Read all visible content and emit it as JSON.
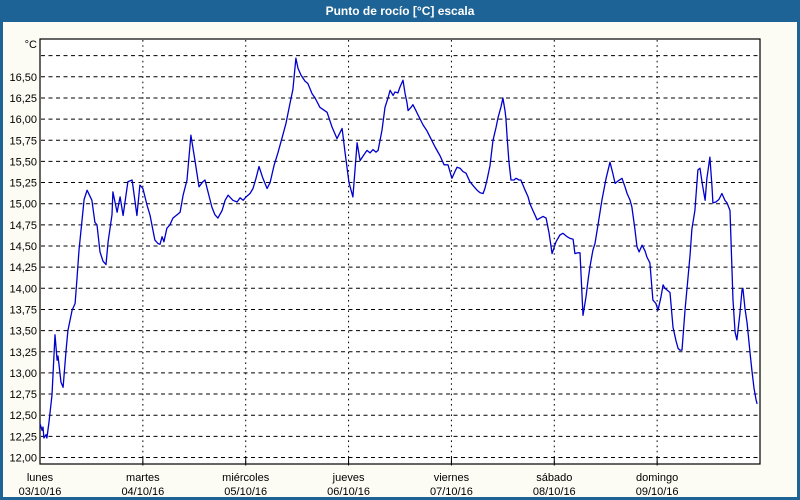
{
  "title": "Punto de rocío [°C] escala",
  "colors": {
    "frame": "#1D6396",
    "titlebar_bg": "#1D6396",
    "title_text": "#FFFFFF",
    "background": "#FCFCF4",
    "plot_background": "#FFFFFF",
    "grid": "#000000",
    "axis_text": "#000000",
    "line": "#0000CD"
  },
  "chart_data": {
    "type": "line",
    "title": "Punto de rocío [°C] escala",
    "y_axis_unit": "°C",
    "ylabel": "°C",
    "xlabel": "",
    "ylim": [
      12.0,
      16.95
    ],
    "ytick_step": 0.25,
    "grid": "dashed, horizontal every 0.25 °C and vertical at each day boundary",
    "legend_position": "none",
    "yticks": [
      {
        "value": 12.0,
        "label": "12,00"
      },
      {
        "value": 12.25,
        "label": "12,25"
      },
      {
        "value": 12.5,
        "label": "12,50"
      },
      {
        "value": 12.75,
        "label": "12,75"
      },
      {
        "value": 13.0,
        "label": "13,00"
      },
      {
        "value": 13.25,
        "label": "13,25"
      },
      {
        "value": 13.5,
        "label": "13,50"
      },
      {
        "value": 13.75,
        "label": "13,75"
      },
      {
        "value": 14.0,
        "label": "14,00"
      },
      {
        "value": 14.25,
        "label": "14,25"
      },
      {
        "value": 14.5,
        "label": "14,50"
      },
      {
        "value": 14.75,
        "label": "14,75"
      },
      {
        "value": 15.0,
        "label": "15,00"
      },
      {
        "value": 15.25,
        "label": "15,25"
      },
      {
        "value": 15.5,
        "label": "15,50"
      },
      {
        "value": 15.75,
        "label": "15,75"
      },
      {
        "value": 16.0,
        "label": "16,00"
      },
      {
        "value": 16.25,
        "label": "16,25"
      },
      {
        "value": 16.5,
        "label": "16,50"
      }
    ],
    "unlabeled_gridlines": [
      16.75
    ],
    "x_unit": "hours since 03/10/16 00:00",
    "xlim": [
      0,
      168
    ],
    "days": [
      {
        "name": "lunes",
        "date": "03/10/16"
      },
      {
        "name": "martes",
        "date": "04/10/16"
      },
      {
        "name": "miércoles",
        "date": "05/10/16"
      },
      {
        "name": "jueves",
        "date": "06/10/16"
      },
      {
        "name": "viernes",
        "date": "07/10/16"
      },
      {
        "name": "sábado",
        "date": "08/10/16"
      },
      {
        "name": "domingo",
        "date": "09/10/16"
      }
    ],
    "series": [
      {
        "name": "Punto de rocío [°C]",
        "color": "#0000CD",
        "points": [
          [
            0.0,
            12.4
          ],
          [
            0.5,
            12.32
          ],
          [
            0.7,
            12.36
          ],
          [
            0.9,
            12.23
          ],
          [
            1.4,
            12.27
          ],
          [
            1.6,
            12.23
          ],
          [
            2.1,
            12.42
          ],
          [
            2.8,
            12.74
          ],
          [
            3.5,
            13.45
          ],
          [
            4.0,
            13.15
          ],
          [
            4.2,
            13.2
          ],
          [
            4.9,
            12.89
          ],
          [
            5.4,
            12.83
          ],
          [
            6.1,
            13.27
          ],
          [
            6.5,
            13.5
          ],
          [
            7.5,
            13.74
          ],
          [
            8.2,
            13.82
          ],
          [
            8.6,
            14.1
          ],
          [
            9.1,
            14.45
          ],
          [
            9.8,
            14.8
          ],
          [
            10.3,
            15.05
          ],
          [
            11.0,
            15.16
          ],
          [
            12.1,
            15.04
          ],
          [
            12.8,
            14.78
          ],
          [
            13.3,
            14.75
          ],
          [
            14.0,
            14.43
          ],
          [
            14.7,
            14.32
          ],
          [
            15.4,
            14.28
          ],
          [
            15.9,
            14.55
          ],
          [
            16.8,
            14.87
          ],
          [
            17.0,
            15.14
          ],
          [
            18.0,
            14.9
          ],
          [
            18.7,
            15.08
          ],
          [
            19.4,
            14.86
          ],
          [
            20.5,
            15.26
          ],
          [
            21.5,
            15.28
          ],
          [
            22.2,
            15.02
          ],
          [
            22.6,
            14.86
          ],
          [
            23.3,
            15.22
          ],
          [
            24.0,
            15.18
          ],
          [
            25.0,
            14.98
          ],
          [
            25.7,
            14.86
          ],
          [
            26.1,
            14.75
          ],
          [
            26.8,
            14.57
          ],
          [
            27.5,
            14.53
          ],
          [
            28.0,
            14.52
          ],
          [
            28.5,
            14.61
          ],
          [
            28.9,
            14.55
          ],
          [
            29.6,
            14.71
          ],
          [
            30.3,
            14.75
          ],
          [
            31.0,
            14.83
          ],
          [
            32.0,
            14.87
          ],
          [
            32.7,
            14.9
          ],
          [
            33.4,
            15.1
          ],
          [
            34.3,
            15.28
          ],
          [
            35.2,
            15.81
          ],
          [
            36.2,
            15.5
          ],
          [
            37.1,
            15.2
          ],
          [
            38.0,
            15.26
          ],
          [
            38.5,
            15.28
          ],
          [
            39.2,
            15.14
          ],
          [
            40.1,
            14.96
          ],
          [
            40.8,
            14.87
          ],
          [
            41.5,
            14.83
          ],
          [
            42.5,
            14.92
          ],
          [
            43.2,
            15.04
          ],
          [
            43.9,
            15.1
          ],
          [
            45.0,
            15.04
          ],
          [
            46.0,
            15.02
          ],
          [
            46.7,
            15.07
          ],
          [
            47.4,
            15.04
          ],
          [
            48.1,
            15.08
          ],
          [
            49.0,
            15.12
          ],
          [
            49.7,
            15.18
          ],
          [
            50.4,
            15.3
          ],
          [
            51.1,
            15.44
          ],
          [
            52.0,
            15.3
          ],
          [
            53.0,
            15.18
          ],
          [
            53.7,
            15.25
          ],
          [
            54.6,
            15.45
          ],
          [
            55.5,
            15.6
          ],
          [
            56.5,
            15.78
          ],
          [
            57.4,
            15.95
          ],
          [
            58.3,
            16.18
          ],
          [
            59.0,
            16.35
          ],
          [
            59.7,
            16.72
          ],
          [
            60.2,
            16.6
          ],
          [
            60.9,
            16.52
          ],
          [
            61.8,
            16.45
          ],
          [
            62.5,
            16.42
          ],
          [
            63.5,
            16.3
          ],
          [
            64.2,
            16.25
          ],
          [
            65.3,
            16.14
          ],
          [
            67.0,
            16.08
          ],
          [
            68.1,
            15.91
          ],
          [
            69.3,
            15.77
          ],
          [
            70.5,
            15.89
          ],
          [
            71.2,
            15.6
          ],
          [
            72.1,
            15.25
          ],
          [
            73.0,
            15.08
          ],
          [
            74.0,
            15.72
          ],
          [
            74.7,
            15.51
          ],
          [
            75.6,
            15.58
          ],
          [
            76.3,
            15.63
          ],
          [
            77.0,
            15.6
          ],
          [
            77.7,
            15.64
          ],
          [
            78.4,
            15.61
          ],
          [
            78.9,
            15.63
          ],
          [
            79.8,
            15.87
          ],
          [
            80.5,
            16.14
          ],
          [
            81.2,
            16.25
          ],
          [
            81.7,
            16.34
          ],
          [
            82.4,
            16.28
          ],
          [
            82.8,
            16.32
          ],
          [
            83.5,
            16.31
          ],
          [
            84.0,
            16.38
          ],
          [
            84.7,
            16.46
          ],
          [
            85.2,
            16.3
          ],
          [
            85.6,
            16.2
          ],
          [
            85.9,
            16.1
          ],
          [
            86.6,
            16.14
          ],
          [
            87.0,
            16.17
          ],
          [
            87.7,
            16.1
          ],
          [
            88.2,
            16.05
          ],
          [
            89.4,
            15.93
          ],
          [
            90.3,
            15.86
          ],
          [
            91.0,
            15.79
          ],
          [
            92.2,
            15.67
          ],
          [
            93.3,
            15.57
          ],
          [
            94.3,
            15.46
          ],
          [
            95.2,
            15.46
          ],
          [
            96.1,
            15.3
          ],
          [
            96.8,
            15.38
          ],
          [
            97.3,
            15.43
          ],
          [
            98.0,
            15.42
          ],
          [
            98.7,
            15.38
          ],
          [
            99.4,
            15.36
          ],
          [
            100.3,
            15.26
          ],
          [
            101.3,
            15.2
          ],
          [
            102.0,
            15.16
          ],
          [
            102.7,
            15.13
          ],
          [
            103.4,
            15.12
          ],
          [
            103.8,
            15.18
          ],
          [
            104.3,
            15.28
          ],
          [
            105.0,
            15.45
          ],
          [
            105.7,
            15.75
          ],
          [
            106.4,
            15.9
          ],
          [
            106.9,
            16.02
          ],
          [
            107.6,
            16.15
          ],
          [
            108.0,
            16.25
          ],
          [
            108.5,
            16.1
          ],
          [
            108.7,
            16.01
          ],
          [
            109.0,
            15.79
          ],
          [
            109.4,
            15.5
          ],
          [
            109.9,
            15.28
          ],
          [
            110.6,
            15.28
          ],
          [
            111.1,
            15.3
          ],
          [
            111.8,
            15.28
          ],
          [
            112.2,
            15.28
          ],
          [
            112.7,
            15.22
          ],
          [
            113.2,
            15.16
          ],
          [
            113.9,
            15.08
          ],
          [
            114.3,
            15.0
          ],
          [
            115.0,
            14.92
          ],
          [
            116.0,
            14.81
          ],
          [
            116.7,
            14.83
          ],
          [
            117.4,
            14.85
          ],
          [
            118.1,
            14.83
          ],
          [
            118.8,
            14.65
          ],
          [
            119.5,
            14.41
          ],
          [
            120.4,
            14.55
          ],
          [
            121.3,
            14.63
          ],
          [
            122.0,
            14.65
          ],
          [
            123.0,
            14.61
          ],
          [
            123.7,
            14.59
          ],
          [
            124.4,
            14.58
          ],
          [
            124.8,
            14.41
          ],
          [
            125.5,
            14.42
          ],
          [
            126.0,
            14.42
          ],
          [
            126.7,
            13.68
          ],
          [
            127.4,
            13.9
          ],
          [
            127.9,
            14.1
          ],
          [
            128.3,
            14.25
          ],
          [
            129.0,
            14.45
          ],
          [
            129.5,
            14.53
          ],
          [
            130.2,
            14.75
          ],
          [
            131.1,
            15.04
          ],
          [
            132.1,
            15.3
          ],
          [
            133.0,
            15.49
          ],
          [
            133.7,
            15.35
          ],
          [
            134.2,
            15.24
          ],
          [
            134.9,
            15.27
          ],
          [
            135.8,
            15.3
          ],
          [
            136.5,
            15.2
          ],
          [
            137.0,
            15.12
          ],
          [
            137.7,
            15.04
          ],
          [
            138.1,
            14.96
          ],
          [
            138.8,
            14.7
          ],
          [
            139.3,
            14.49
          ],
          [
            139.8,
            14.43
          ],
          [
            140.5,
            14.51
          ],
          [
            141.2,
            14.44
          ],
          [
            141.6,
            14.37
          ],
          [
            142.3,
            14.3
          ],
          [
            143.0,
            13.86
          ],
          [
            143.7,
            13.82
          ],
          [
            144.2,
            13.74
          ],
          [
            144.9,
            13.9
          ],
          [
            145.4,
            14.04
          ],
          [
            145.8,
            14.0
          ],
          [
            146.3,
            13.98
          ],
          [
            147.0,
            13.95
          ],
          [
            147.7,
            13.54
          ],
          [
            148.4,
            13.38
          ],
          [
            148.9,
            13.29
          ],
          [
            149.3,
            13.27
          ],
          [
            149.8,
            13.27
          ],
          [
            150.5,
            13.74
          ],
          [
            151.0,
            14.01
          ],
          [
            151.7,
            14.4
          ],
          [
            152.1,
            14.7
          ],
          [
            152.8,
            14.92
          ],
          [
            153.5,
            15.4
          ],
          [
            154.0,
            15.42
          ],
          [
            154.5,
            15.25
          ],
          [
            155.2,
            15.04
          ],
          [
            155.6,
            15.3
          ],
          [
            156.3,
            15.55
          ],
          [
            156.8,
            15.2
          ],
          [
            157.0,
            15.01
          ],
          [
            157.7,
            15.02
          ],
          [
            158.4,
            15.05
          ],
          [
            159.1,
            15.12
          ],
          [
            159.8,
            15.04
          ],
          [
            160.3,
            15.01
          ],
          [
            161.0,
            14.92
          ],
          [
            161.7,
            13.86
          ],
          [
            162.2,
            13.48
          ],
          [
            162.6,
            13.39
          ],
          [
            163.3,
            13.7
          ],
          [
            163.8,
            13.98
          ],
          [
            164.0,
            14.0
          ],
          [
            164.5,
            13.76
          ],
          [
            165.0,
            13.59
          ],
          [
            165.7,
            13.23
          ],
          [
            166.1,
            13.03
          ],
          [
            166.6,
            12.82
          ],
          [
            167.1,
            12.68
          ],
          [
            167.3,
            12.64
          ]
        ]
      }
    ]
  }
}
